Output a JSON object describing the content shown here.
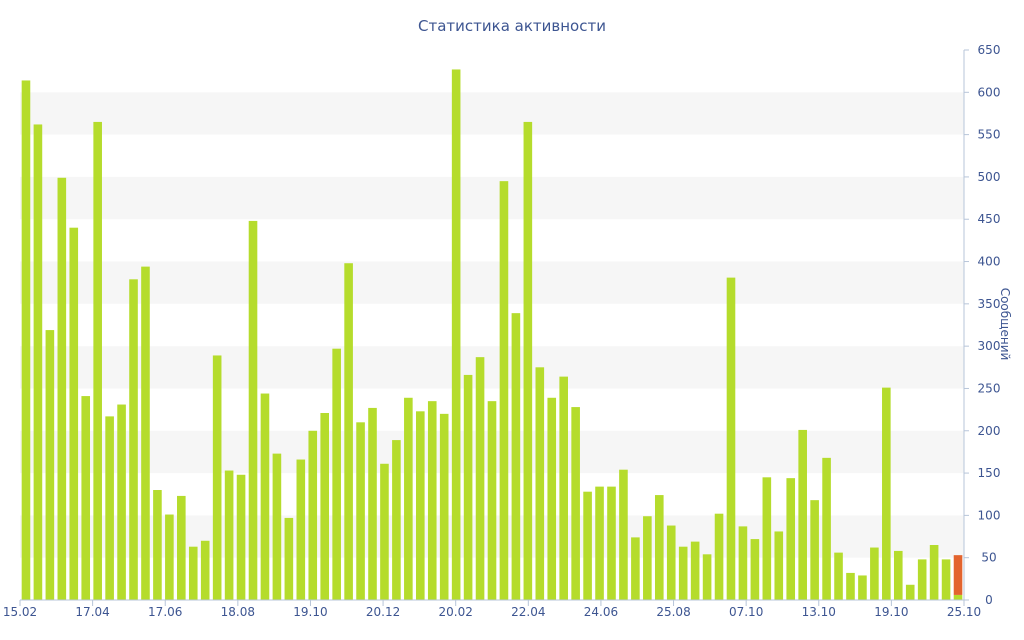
{
  "chart_data": {
    "type": "bar",
    "title": "Статистика активности",
    "ylabel": "Сообщений",
    "xlabel": "",
    "ylim": [
      0,
      650
    ],
    "y_ticks": [
      0,
      50,
      100,
      150,
      200,
      250,
      300,
      350,
      400,
      450,
      500,
      550,
      600,
      650
    ],
    "x_tick_labels": [
      "15.02",
      "17.04",
      "17.06",
      "18.08",
      "19.10",
      "20.12",
      "20.02",
      "22.04",
      "24.06",
      "25.08",
      "07.10",
      "13.10",
      "19.10",
      "25.10"
    ],
    "grid": "alternating horizontal bands",
    "axis_side": "right",
    "series": [
      {
        "color": "#b5dc2c",
        "values": [
          614,
          562,
          319,
          499,
          440,
          241,
          565,
          217,
          231,
          379,
          394,
          130,
          101,
          123,
          63,
          70,
          289,
          153,
          148,
          448,
          244,
          173,
          97,
          166,
          200,
          221,
          297,
          398,
          210,
          227,
          161,
          189,
          239,
          223,
          235,
          220,
          627,
          266,
          287,
          235,
          495,
          339,
          565,
          275,
          239,
          264,
          228,
          128,
          134,
          134,
          154,
          74,
          99,
          124,
          88,
          63,
          69,
          54,
          102,
          381,
          87,
          72,
          145,
          81,
          144,
          201,
          118,
          168,
          56,
          32,
          29,
          62,
          251,
          58,
          18,
          48,
          65,
          48,
          6
        ]
      },
      {
        "color": "#e3642e",
        "stack_on_last": true,
        "values": [
          47
        ]
      }
    ],
    "colors": {
      "bar": "#b5dc2c",
      "current_bar": "#e3642e",
      "text": "#3d5591",
      "axis": "#b7c5d9",
      "band": "#f6f6f6"
    }
  }
}
